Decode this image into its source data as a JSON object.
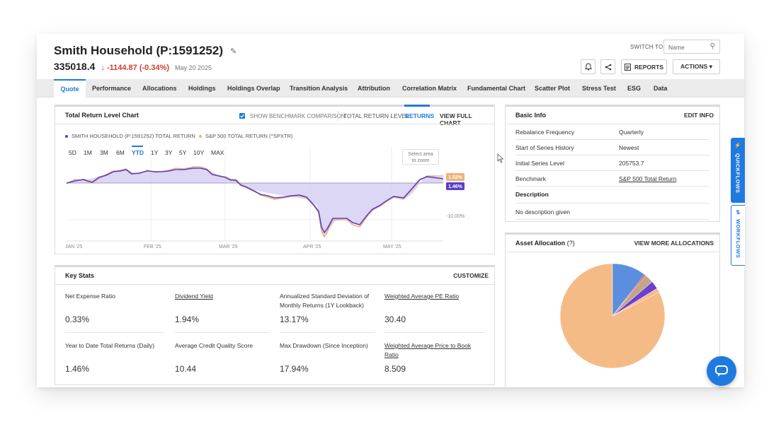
{
  "header": {
    "title": "Smith Household (P:1591252)",
    "value": "335018.4",
    "change": "↓ -1144.87 (-0.34%)",
    "date": "May 20 2025",
    "switch_label": "SWITCH TO:",
    "switch_placeholder": "Name",
    "reports_label": "REPORTS",
    "actions_label": "ACTIONS ▾"
  },
  "tabs": [
    "Quote",
    "Performance",
    "Allocations",
    "Holdings",
    "Holdings Overlap",
    "Transition Analysis",
    "Attribution",
    "Correlation Matrix",
    "Fundamental Chart",
    "Scatter Plot",
    "Stress Test",
    "ESG",
    "Data"
  ],
  "return_chart": {
    "title": "Total Return Level Chart",
    "show_benchmark": "SHOW BENCHMARK COMPARISON",
    "mode_level": "TOTAL RETURN LEVEL",
    "mode_returns": "RETURNS",
    "view_full": "VIEW FULL CHART",
    "legend_portfolio": "SMITH HOUSEHOLD (P:1591252) TOTAL RETURN",
    "legend_benchmark": "S&P 500 TOTAL RETURN (^SPXTR)",
    "ranges": [
      "5D",
      "1M",
      "3M",
      "6M",
      "YTD",
      "1Y",
      "3Y",
      "5Y",
      "10Y",
      "MAX"
    ],
    "zoom_hint_line1": "Select area",
    "zoom_hint_line2": "to zoom",
    "badge_benchmark": "1.52%",
    "badge_portfolio": "1.46%",
    "y_tick": "-10.00%",
    "x_ticks": [
      "JAN '25",
      "FEB '25",
      "MAR '25",
      "APR '25",
      "MAY '25"
    ],
    "colors": {
      "portfolio": "#5b3fc4",
      "benchmark": "#f0b07a",
      "fill": "#d6d0f2"
    }
  },
  "key_stats": {
    "title": "Key Stats",
    "customize": "CUSTOMIZE",
    "items": [
      {
        "label": "Net Expense Ratio",
        "value": "0.33%"
      },
      {
        "label": "Dividend Yield",
        "value": "1.94%"
      },
      {
        "label": "Annualized Standard Deviation of Monthly Returns (1Y Lookback)",
        "value": "13.17%"
      },
      {
        "label": "Weighted Average PE Ratio",
        "value": "30.40"
      },
      {
        "label": "Year to Date Total Returns (Daily)",
        "value": "1.46%"
      },
      {
        "label": "Average Credit Quality Score",
        "value": "10.44"
      },
      {
        "label": "Max Drawdown (Since Inception)",
        "value": "17.94%"
      },
      {
        "label": "Weighted Average Price to Book Ratio",
        "value": "8.509"
      }
    ]
  },
  "basic_info": {
    "title": "Basic Info",
    "edit": "EDIT INFO",
    "rows": [
      {
        "label": "Rebalance Frequency",
        "value": "Quarterly"
      },
      {
        "label": "Start of Series History",
        "value": "Newest"
      },
      {
        "label": "Initial Series Level",
        "value": "205753.7"
      },
      {
        "label": "Benchmark",
        "value": "S&P 500 Total Return"
      }
    ],
    "desc_label": "Description",
    "desc_value": "No description given"
  },
  "asset_allocation": {
    "title": "Asset Allocation",
    "help": "(?)",
    "view_more": "VIEW MORE ALLOCATIONS",
    "slices": [
      {
        "share": 0.825,
        "color": "#f5bb87"
      },
      {
        "share": 0.105,
        "color": "#5b8fde"
      },
      {
        "share": 0.004,
        "color": "#e8413c"
      },
      {
        "share": 0.028,
        "color": "#c4a58b"
      },
      {
        "share": 0.025,
        "color": "#6a3fd1"
      },
      {
        "share": 0.013,
        "color": "#f5bb87"
      }
    ]
  },
  "side_tabs": {
    "quickflows": "QUICKFLOWS",
    "workflows": "WORKFLOWS"
  }
}
